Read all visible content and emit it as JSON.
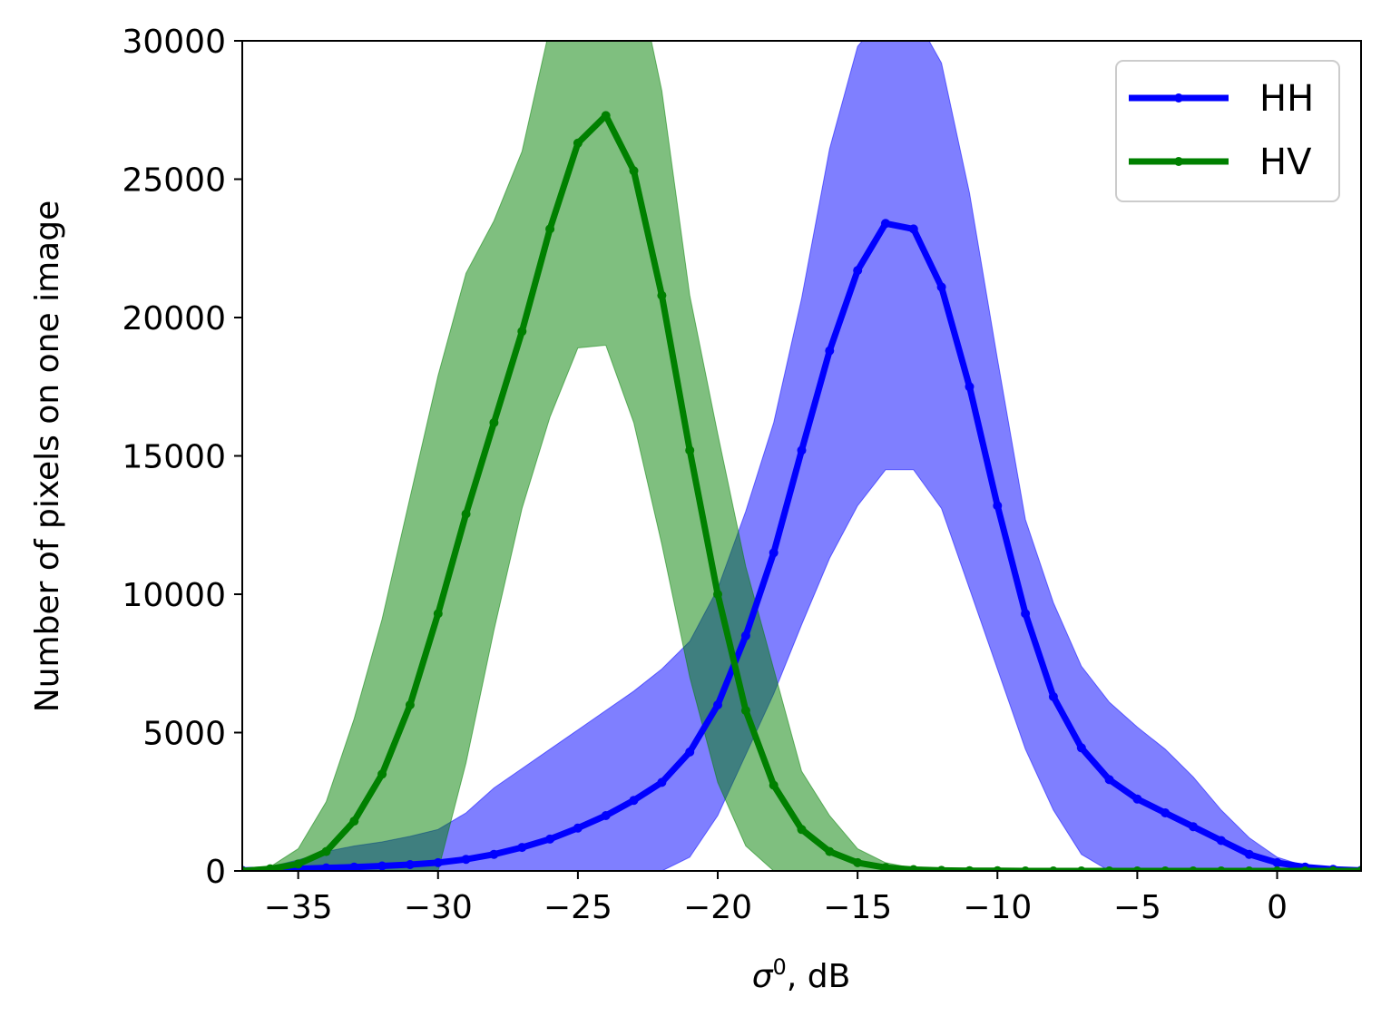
{
  "chart_data": {
    "type": "line",
    "xlabel": "σ",
    "xlabel_sup": "0",
    "xlabel_suffix": ", dB",
    "ylabel": "Number of pixels on one image",
    "xlim": [
      -37,
      3
    ],
    "ylim": [
      0,
      30000
    ],
    "xticks": [
      -35,
      -30,
      -25,
      -20,
      -15,
      -10,
      -5,
      0
    ],
    "xtick_labels": [
      "−35",
      "−30",
      "−25",
      "−20",
      "−15",
      "−10",
      "−5",
      "0"
    ],
    "yticks": [
      0,
      5000,
      10000,
      15000,
      20000,
      25000,
      30000
    ],
    "ytick_labels": [
      "0",
      "5000",
      "10000",
      "15000",
      "20000",
      "25000",
      "30000"
    ],
    "grid": false,
    "legend_position": "top-right",
    "series": [
      {
        "name": "HH",
        "color": "#0000ff",
        "band_fill": "rgba(0,0,255,0.5)",
        "x": [
          -37,
          -36,
          -35,
          -34,
          -33,
          -32,
          -31,
          -30,
          -29,
          -28,
          -27,
          -26,
          -25,
          -24,
          -23,
          -22,
          -21,
          -20,
          -19,
          -18,
          -17,
          -16,
          -15,
          -14,
          -13,
          -12,
          -11,
          -10,
          -9,
          -8,
          -7,
          -6,
          -5,
          -4,
          -3,
          -2,
          -1,
          0,
          1,
          2,
          3
        ],
        "mean": [
          20,
          50,
          80,
          110,
          140,
          180,
          230,
          300,
          420,
          600,
          850,
          1150,
          1550,
          2000,
          2550,
          3200,
          4300,
          6000,
          8500,
          11500,
          15200,
          18800,
          21700,
          23400,
          23200,
          21100,
          17500,
          13200,
          9300,
          6300,
          4450,
          3300,
          2600,
          2100,
          1600,
          1100,
          600,
          300,
          140,
          60,
          20
        ],
        "upper": [
          40,
          150,
          400,
          700,
          900,
          1050,
          1250,
          1500,
          2100,
          3000,
          3700,
          4400,
          5100,
          5800,
          6500,
          7300,
          8300,
          10200,
          13000,
          16200,
          20700,
          26100,
          29800,
          31000,
          31000,
          29200,
          24500,
          18500,
          12700,
          9700,
          7400,
          6100,
          5200,
          4400,
          3400,
          2200,
          1200,
          500,
          180,
          60,
          20
        ],
        "lower": [
          0,
          0,
          0,
          0,
          0,
          0,
          0,
          0,
          0,
          0,
          0,
          0,
          0,
          0,
          0,
          0,
          500,
          2000,
          4200,
          6400,
          8900,
          11300,
          13200,
          14500,
          14500,
          13100,
          10200,
          7300,
          4400,
          2200,
          600,
          0,
          0,
          0,
          0,
          0,
          0,
          0,
          0,
          0,
          0
        ]
      },
      {
        "name": "HV",
        "color": "#008000",
        "band_fill": "rgba(0,128,0,0.5)",
        "x": [
          -37,
          -36,
          -35,
          -34,
          -33,
          -32,
          -31,
          -30,
          -29,
          -28,
          -27,
          -26,
          -25,
          -24,
          -23,
          -22,
          -21,
          -20,
          -19,
          -18,
          -17,
          -16,
          -15,
          -14,
          -13,
          -12,
          -11,
          -10,
          -9,
          -8,
          -7,
          -6,
          -5,
          -4,
          -3,
          -2,
          -1,
          0,
          1,
          2,
          3
        ],
        "mean": [
          0,
          80,
          250,
          700,
          1800,
          3500,
          6000,
          9300,
          12900,
          16200,
          19500,
          23200,
          26300,
          27300,
          25300,
          20800,
          15200,
          10000,
          5800,
          3100,
          1500,
          700,
          300,
          120,
          50,
          20,
          10,
          5,
          0,
          0,
          0,
          0,
          0,
          0,
          0,
          0,
          0,
          0,
          0,
          0,
          0
        ],
        "upper": [
          0,
          150,
          800,
          2500,
          5500,
          9100,
          13500,
          17900,
          21600,
          23500,
          26000,
          30500,
          33000,
          33000,
          33000,
          28200,
          20800,
          15800,
          11000,
          7300,
          3600,
          2000,
          800,
          300,
          100,
          40,
          10,
          5,
          0,
          0,
          0,
          0,
          0,
          0,
          0,
          0,
          0,
          0,
          0,
          0,
          0
        ],
        "lower": [
          0,
          0,
          0,
          0,
          0,
          0,
          0,
          0,
          3900,
          8700,
          13100,
          16400,
          18900,
          19000,
          16200,
          11800,
          7000,
          3200,
          900,
          0,
          0,
          0,
          0,
          0,
          0,
          0,
          0,
          0,
          0,
          0,
          0,
          0,
          0,
          0,
          0,
          0,
          0,
          0,
          0,
          0,
          0
        ]
      }
    ]
  }
}
